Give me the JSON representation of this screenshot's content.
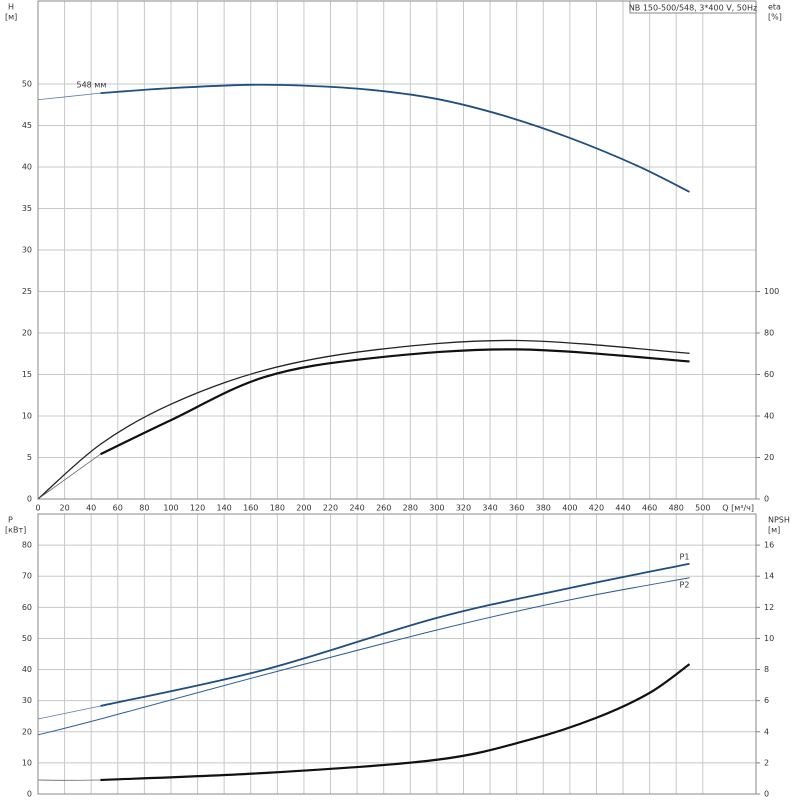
{
  "chart_data": [
    {
      "type": "line",
      "title": "NB 150-500/548, 3*400 V, 50Hz",
      "ylabel": "H",
      "yunit": "[м]",
      "y2label": "eta",
      "y2unit": "[%]",
      "xlabel": "Q [м³/ч]",
      "xlim": [
        0,
        540
      ],
      "xticks": [
        0,
        20,
        40,
        60,
        80,
        100,
        120,
        140,
        160,
        180,
        200,
        220,
        240,
        260,
        280,
        300,
        320,
        340,
        360,
        380,
        400,
        420,
        440,
        460,
        480,
        500
      ],
      "ylim": [
        0,
        60
      ],
      "yticks": [
        0,
        5,
        10,
        15,
        20,
        25,
        30,
        35,
        40,
        45,
        50
      ],
      "y2lim": [
        0,
        240
      ],
      "y2ticks": [
        0,
        20,
        40,
        60,
        80,
        100
      ],
      "grid": true,
      "series": [
        {
          "name": "548 мм",
          "color": "#1f4e80",
          "width": 1.8,
          "x": [
            47,
            100,
            160,
            200,
            250,
            300,
            350,
            400,
            450,
            490
          ],
          "values": [
            48.9,
            49.5,
            49.9,
            49.8,
            49.3,
            48.2,
            46.2,
            43.5,
            40.2,
            37.0
          ]
        },
        {
          "color": "#5a7fa8",
          "width": 0.8,
          "x": [
            0,
            47
          ],
          "values": [
            48.1,
            48.9
          ]
        },
        {
          "color": "#222",
          "width": 1.3,
          "axis": "y2",
          "x": [
            0,
            47,
            100,
            170,
            250,
            360,
            490
          ],
          "values": [
            0,
            26.4,
            45.7,
            62,
            71.6,
            76.4,
            70.2
          ]
        },
        {
          "color": "#111",
          "width": 2.2,
          "axis": "y2",
          "x": [
            47,
            100,
            170,
            250,
            360,
            490
          ],
          "values": [
            21.6,
            38,
            58.7,
            67.8,
            72.1,
            66.3
          ]
        },
        {
          "color": "#666",
          "width": 0.8,
          "axis": "y2",
          "x": [
            0,
            47
          ],
          "values": [
            0,
            21.6
          ]
        }
      ]
    },
    {
      "type": "line",
      "ylabel": "P",
      "yunit": "[кВт]",
      "y2label": "NPSH",
      "y2unit": "[м]",
      "xlim": [
        0,
        540
      ],
      "ylim": [
        0,
        90
      ],
      "yticks": [
        0,
        10,
        20,
        30,
        40,
        50,
        60,
        70,
        80
      ],
      "y2lim": [
        0,
        18
      ],
      "y2ticks": [
        0,
        2,
        4,
        6,
        8,
        10,
        12,
        14,
        16
      ],
      "grid": true,
      "series": [
        {
          "name": "P1",
          "color": "#1f4e80",
          "width": 1.8,
          "x": [
            47,
            170,
            300,
            400,
            490
          ],
          "values": [
            28.3,
            39.9,
            56.6,
            66.2,
            74
          ]
        },
        {
          "color": "#5a7fa8",
          "width": 0.8,
          "x": [
            0,
            47
          ],
          "values": [
            24.1,
            28.3
          ]
        },
        {
          "name": "P2",
          "color": "#2f5f95",
          "width": 1,
          "x": [
            0,
            47,
            170,
            300,
            400,
            490
          ],
          "values": [
            19,
            24.1,
            38.3,
            52.7,
            62.4,
            69.5
          ]
        },
        {
          "color": "#111",
          "width": 2.2,
          "axis": "y2",
          "x": [
            47,
            170,
            300,
            370,
            420,
            460,
            490
          ],
          "values": [
            0.9,
            1.35,
            2.2,
            3.5,
            4.9,
            6.5,
            8.35
          ]
        },
        {
          "color": "#666",
          "width": 0.8,
          "axis": "y2",
          "x": [
            0,
            20,
            47
          ],
          "values": [
            0.9,
            0.88,
            0.9
          ]
        }
      ]
    }
  ]
}
